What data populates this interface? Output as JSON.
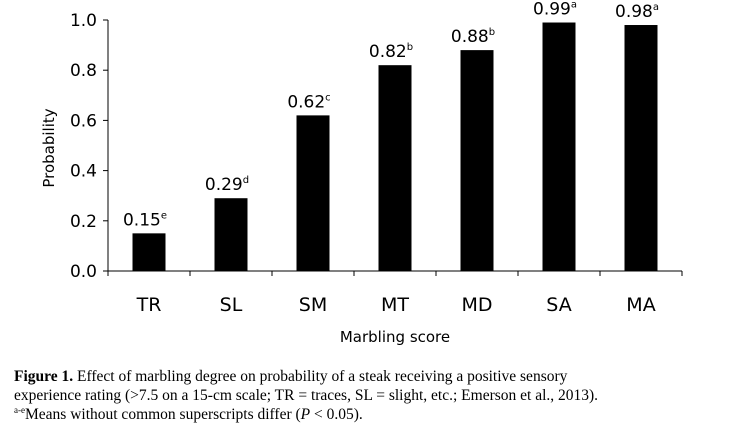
{
  "chart_data": {
    "type": "bar",
    "categories": [
      "TR",
      "SL",
      "SM",
      "MT",
      "MD",
      "SA",
      "MA"
    ],
    "values": [
      0.15,
      0.29,
      0.62,
      0.82,
      0.88,
      0.99,
      0.98
    ],
    "data_labels": [
      "0.15",
      "0.29",
      "0.62",
      "0.82",
      "0.88",
      "0.99",
      "0.98"
    ],
    "superscripts": [
      "e",
      "d",
      "c",
      "b",
      "b",
      "a",
      "a"
    ],
    "xlabel": "Marbling score",
    "ylabel": "Probability",
    "ylim": [
      0,
      1.0
    ],
    "yticks": [
      "0.0",
      "0.2",
      "0.4",
      "0.6",
      "0.8",
      "1.0"
    ],
    "bar_color": "#000000",
    "grid": false
  },
  "caption": {
    "figure_label": "Figure 1.",
    "text_line1": " Effect of marbling degree on probability of a steak receiving a positive sensory",
    "text_line2": "experience rating (>7.5 on a 15-cm scale; TR = traces, SL = slight, etc.; Emerson et al., 2013).",
    "footnote_sup": "a-e",
    "footnote_text": "Means without common superscripts differ (",
    "footnote_p": "P",
    "footnote_end": " < 0.05)."
  }
}
